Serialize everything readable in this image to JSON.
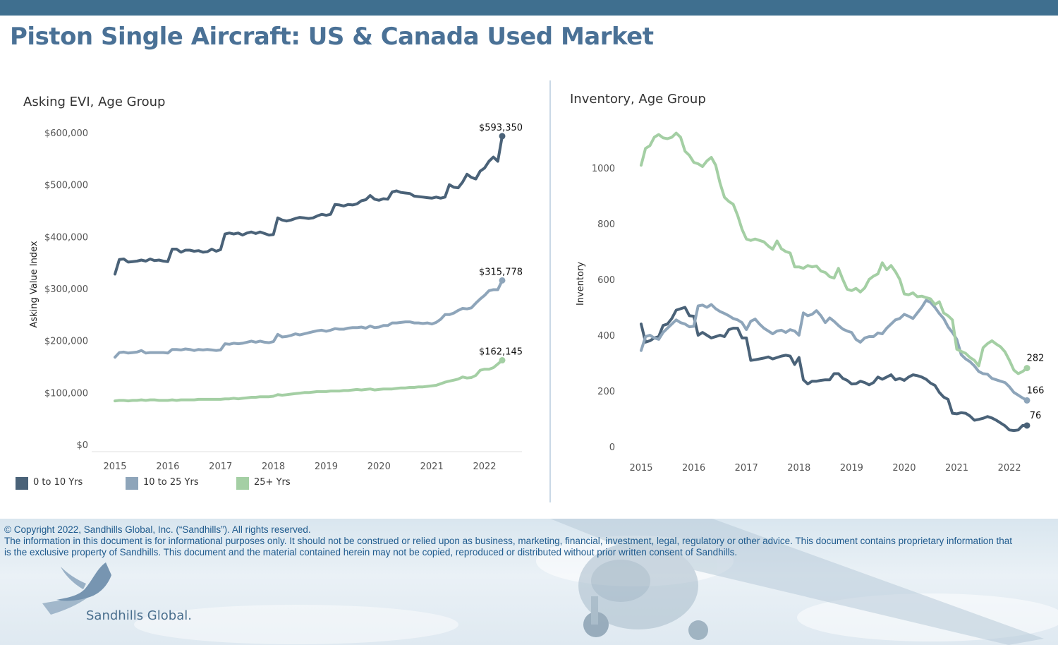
{
  "header": {
    "title": "Piston Single Aircraft:  US & Canada Used Market"
  },
  "legend": {
    "items": [
      {
        "label": "0 to 10 Yrs",
        "color": "#4a6278"
      },
      {
        "label": "10 to 25 Yrs",
        "color": "#8ea5ba"
      },
      {
        "label": "25+ Yrs",
        "color": "#a4cfa4"
      }
    ]
  },
  "footer": {
    "copyright": "© Copyright 2022, Sandhills Global, Inc. (“Sandhills”). All rights reserved.",
    "disclaimer": "The information in this document is for informational purposes only.  It should not be construed or relied upon as business, marketing, financial, investment, legal, regulatory or other advice. This document contains proprietary information that is the exclusive property of Sandhills. This document and the material contained herein may not be copied, reproduced or distributed without prior written consent of Sandhills.",
    "logo_text": "Sandhills Global."
  },
  "chart_data": [
    {
      "id": "asking",
      "type": "line",
      "title": "Asking EVI, Age Group",
      "xlabel": "",
      "ylabel": "Asking Value Index",
      "x_start": 2015.0,
      "x_step_months": 1,
      "xlim": [
        2015,
        2022.17
      ],
      "ylim": [
        0,
        600000
      ],
      "x_ticks": [
        2015,
        2016,
        2017,
        2018,
        2019,
        2020,
        2021,
        2022
      ],
      "y_ticks": [
        0,
        100000,
        200000,
        300000,
        400000,
        500000,
        600000
      ],
      "y_tick_labels": [
        "$0",
        "$100,000",
        "$200,000",
        "$300,000",
        "$400,000",
        "$500,000",
        "$600,000"
      ],
      "grid": false,
      "legend": "bottom-left",
      "series": [
        {
          "name": "0 to 10 Yrs",
          "color": "#4a6278",
          "end_label": "$593,350",
          "values": [
            328000,
            356000,
            357000,
            351000,
            352000,
            353000,
            355000,
            353000,
            357000,
            354000,
            355000,
            353000,
            352000,
            376000,
            376000,
            370000,
            374000,
            374000,
            372000,
            373000,
            370000,
            371000,
            376000,
            372000,
            375000,
            405000,
            407000,
            405000,
            407000,
            403000,
            407000,
            409000,
            406000,
            409000,
            406000,
            403000,
            404000,
            436000,
            432000,
            430000,
            432000,
            435000,
            437000,
            436000,
            435000,
            436000,
            440000,
            443000,
            441000,
            443000,
            462000,
            461000,
            459000,
            462000,
            461000,
            463000,
            469000,
            471000,
            479000,
            472000,
            470000,
            473000,
            472000,
            486000,
            488000,
            485000,
            484000,
            483000,
            478000,
            477000,
            476000,
            475000,
            474000,
            476000,
            474000,
            476000,
            500000,
            495000,
            494000,
            505000,
            520000,
            514000,
            511000,
            526000,
            532000,
            545000,
            553000,
            545000,
            593350
          ]
        },
        {
          "name": "10 to 25 Yrs",
          "color": "#8ea5ba",
          "end_label": "$315,778",
          "values": [
            168000,
            177000,
            178000,
            176000,
            177000,
            178000,
            181000,
            176000,
            177000,
            177000,
            177000,
            177000,
            176000,
            183000,
            183000,
            182000,
            184000,
            183000,
            181000,
            183000,
            182000,
            183000,
            182000,
            181000,
            182000,
            194000,
            193000,
            195000,
            194000,
            195000,
            197000,
            199000,
            197000,
            199000,
            197000,
            196000,
            198000,
            212000,
            207000,
            208000,
            210000,
            213000,
            211000,
            213000,
            215000,
            217000,
            219000,
            220000,
            218000,
            220000,
            223000,
            222000,
            222000,
            224000,
            225000,
            225000,
            226000,
            224000,
            228000,
            225000,
            226000,
            229000,
            229000,
            234000,
            234000,
            235000,
            236000,
            236000,
            234000,
            234000,
            233000,
            234000,
            232000,
            235000,
            241000,
            250000,
            250000,
            253000,
            258000,
            262000,
            261000,
            263000,
            272000,
            280000,
            287000,
            296000,
            298000,
            298000,
            315778
          ]
        },
        {
          "name": "25+ Yrs",
          "color": "#a4cfa4",
          "end_label": "$162,145",
          "values": [
            84000,
            85000,
            85000,
            84000,
            85000,
            85000,
            86000,
            85000,
            86000,
            86000,
            85000,
            85000,
            85000,
            86000,
            85000,
            86000,
            86000,
            86000,
            86000,
            87000,
            87000,
            87000,
            87000,
            87000,
            87000,
            88000,
            88000,
            89000,
            88000,
            89000,
            90000,
            91000,
            91000,
            92000,
            92000,
            92000,
            93000,
            96000,
            95000,
            96000,
            97000,
            98000,
            99000,
            100000,
            100000,
            101000,
            102000,
            102000,
            102000,
            103000,
            103000,
            103000,
            104000,
            104000,
            105000,
            106000,
            105000,
            106000,
            107000,
            105000,
            106000,
            107000,
            107000,
            107000,
            108000,
            109000,
            109000,
            110000,
            110000,
            111000,
            111000,
            112000,
            113000,
            114000,
            117000,
            120000,
            122000,
            124000,
            126000,
            130000,
            128000,
            129000,
            133000,
            143000,
            145000,
            145000,
            148000,
            155000,
            162145
          ]
        }
      ]
    },
    {
      "id": "inventory",
      "type": "line",
      "title": "Inventory, Age Group",
      "xlabel": "",
      "ylabel": "Inventory",
      "x_start": 2015.0,
      "x_step_months": 1,
      "xlim": [
        2015,
        2022.17
      ],
      "ylim": [
        0,
        1150
      ],
      "x_ticks": [
        2015,
        2016,
        2017,
        2018,
        2019,
        2020,
        2021,
        2022
      ],
      "y_ticks": [
        0,
        200,
        400,
        600,
        800,
        1000
      ],
      "y_tick_labels": [
        "0",
        "200",
        "400",
        "600",
        "800",
        "1000"
      ],
      "grid": false,
      "series": [
        {
          "name": "0 to 10 Yrs",
          "color": "#4a6278",
          "end_label": "76",
          "values": [
            440,
            375,
            380,
            390,
            395,
            435,
            440,
            460,
            490,
            495,
            500,
            470,
            468,
            400,
            410,
            400,
            390,
            395,
            400,
            395,
            420,
            425,
            425,
            390,
            390,
            310,
            312,
            315,
            318,
            322,
            315,
            320,
            325,
            328,
            325,
            295,
            320,
            240,
            225,
            235,
            235,
            238,
            240,
            240,
            262,
            262,
            245,
            238,
            225,
            226,
            235,
            230,
            222,
            230,
            250,
            242,
            250,
            258,
            240,
            245,
            238,
            250,
            258,
            255,
            250,
            242,
            228,
            220,
            195,
            178,
            170,
            120,
            118,
            122,
            120,
            110,
            95,
            98,
            102,
            108,
            103,
            95,
            85,
            75,
            60,
            58,
            60,
            76,
            76
          ]
        },
        {
          "name": "10 to 25 Yrs",
          "color": "#8ea5ba",
          "end_label": "166",
          "values": [
            345,
            395,
            400,
            390,
            385,
            410,
            425,
            440,
            455,
            445,
            440,
            430,
            432,
            505,
            508,
            500,
            510,
            495,
            485,
            478,
            470,
            460,
            455,
            445,
            420,
            450,
            458,
            440,
            425,
            415,
            405,
            415,
            418,
            410,
            420,
            415,
            400,
            480,
            470,
            475,
            488,
            470,
            445,
            462,
            450,
            435,
            422,
            415,
            410,
            385,
            375,
            390,
            395,
            395,
            408,
            405,
            425,
            440,
            455,
            460,
            475,
            468,
            460,
            480,
            500,
            525,
            518,
            500,
            478,
            460,
            430,
            410,
            385,
            330,
            315,
            305,
            290,
            270,
            262,
            260,
            245,
            240,
            235,
            230,
            215,
            195,
            185,
            175,
            166
          ]
        },
        {
          "name": "25+ Yrs",
          "color": "#a4cfa4",
          "end_label": "282",
          "values": [
            1010,
            1070,
            1080,
            1110,
            1120,
            1108,
            1105,
            1110,
            1125,
            1110,
            1060,
            1045,
            1020,
            1015,
            1005,
            1025,
            1038,
            1010,
            945,
            895,
            880,
            870,
            830,
            780,
            745,
            740,
            745,
            740,
            735,
            720,
            708,
            738,
            710,
            700,
            695,
            645,
            645,
            640,
            650,
            645,
            648,
            630,
            625,
            610,
            605,
            640,
            600,
            565,
            560,
            568,
            555,
            570,
            600,
            612,
            620,
            660,
            635,
            650,
            628,
            600,
            548,
            545,
            552,
            538,
            540,
            535,
            530,
            510,
            520,
            480,
            470,
            455,
            350,
            342,
            335,
            320,
            310,
            290,
            355,
            370,
            380,
            368,
            358,
            340,
            310,
            275,
            262,
            270,
            282
          ]
        }
      ]
    }
  ]
}
